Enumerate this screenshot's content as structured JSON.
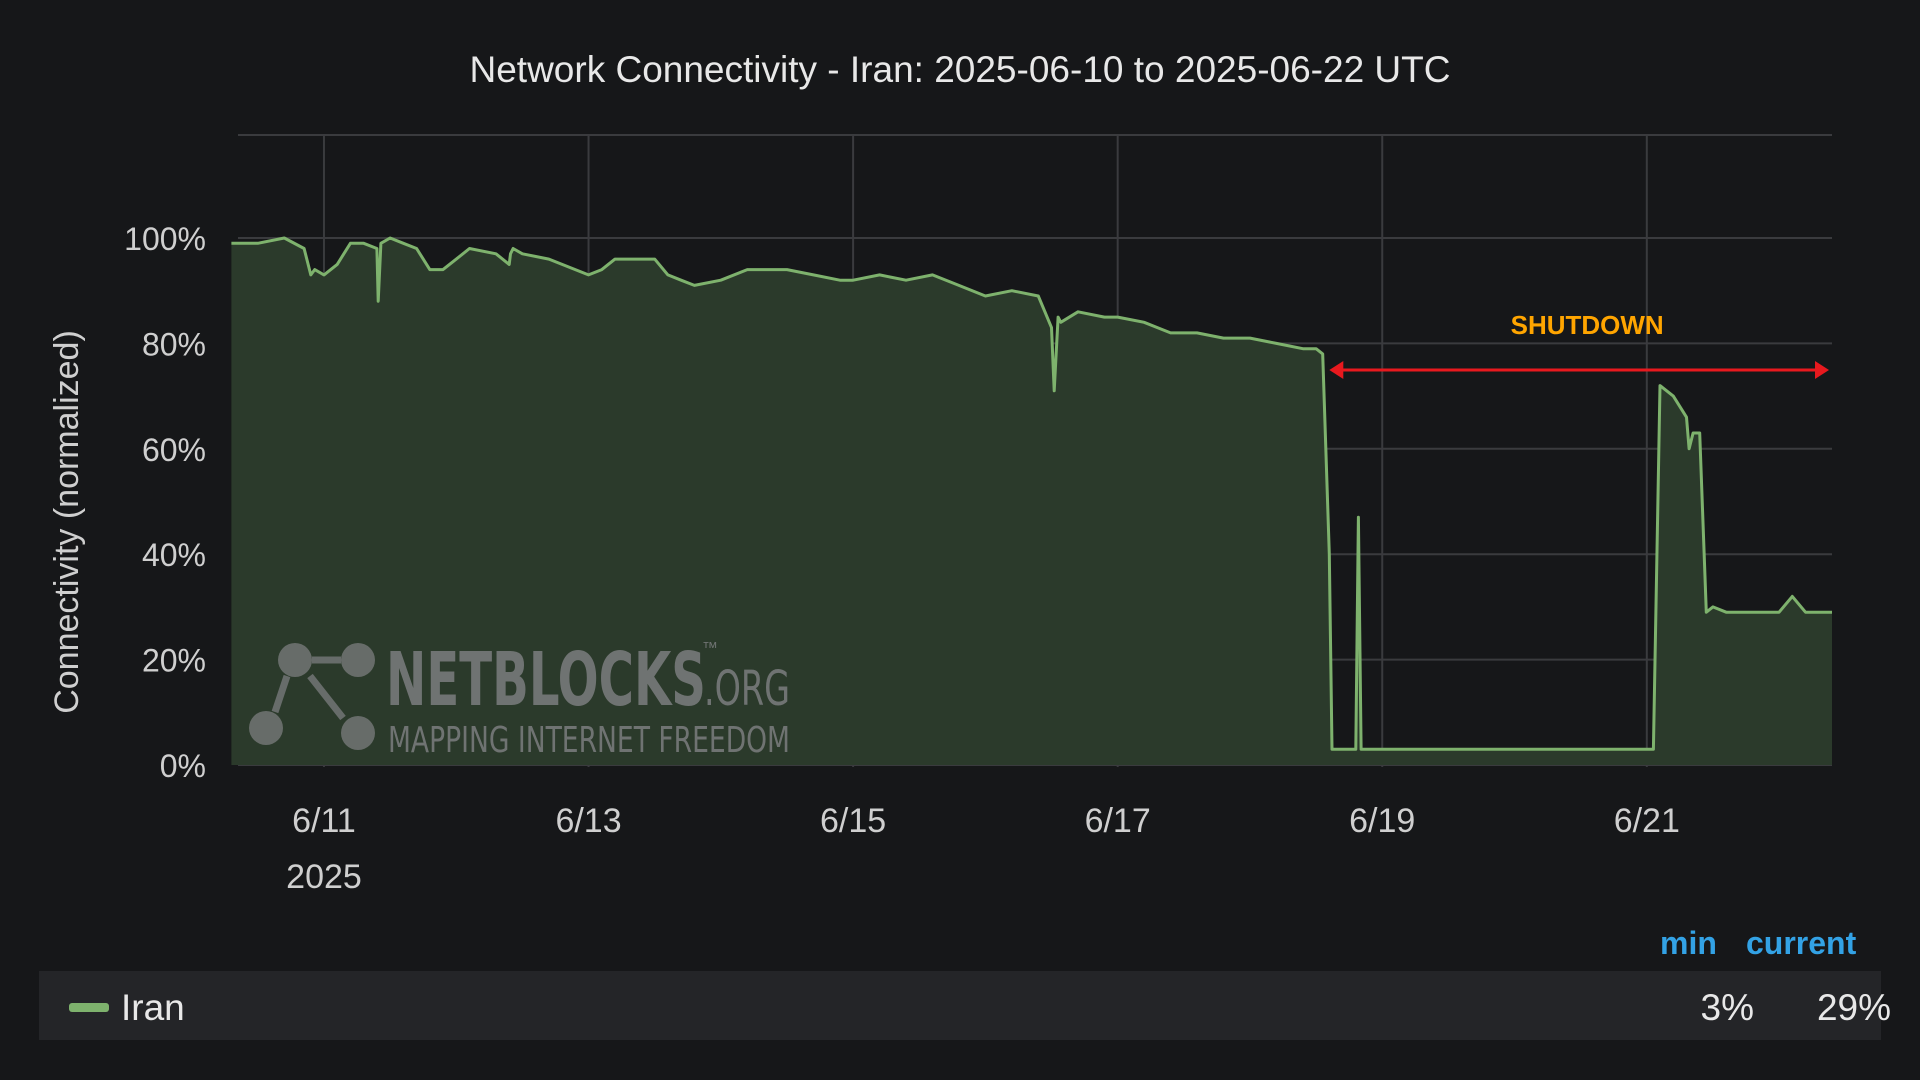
{
  "chart_data": {
    "type": "area",
    "title": "Network Connectivity - Iran: 2025-06-10 to 2025-06-22 UTC",
    "ylabel": "Connectivity (normalized)",
    "xlabel": "",
    "x_ticks": [
      "6/11",
      "6/13",
      "6/15",
      "6/17",
      "6/19",
      "6/21"
    ],
    "x_year_label": "2025",
    "y_ticks": [
      "0%",
      "20%",
      "40%",
      "60%",
      "80%",
      "100%"
    ],
    "ylim": [
      0,
      100
    ],
    "grid": true,
    "colors": {
      "line": "#7eb26d",
      "fill": "#2b3a2b",
      "annotation_text": "#ffa500",
      "annotation_arrow": "#e8191e",
      "stat_header": "#33a2e5"
    },
    "series": [
      {
        "name": "Iran",
        "x_days": [
          10.3,
          10.5,
          10.7,
          10.85,
          10.9,
          10.93,
          11.0,
          11.1,
          11.2,
          11.3,
          11.4,
          11.41,
          11.43,
          11.5,
          11.6,
          11.7,
          11.8,
          11.9,
          12.0,
          12.1,
          12.3,
          12.4,
          12.41,
          12.43,
          12.5,
          12.7,
          12.9,
          13.0,
          13.1,
          13.2,
          13.3,
          13.4,
          13.5,
          13.6,
          13.7,
          13.8,
          14.0,
          14.2,
          14.4,
          14.5,
          14.7,
          14.9,
          15.0,
          15.2,
          15.4,
          15.6,
          15.8,
          16.0,
          16.2,
          16.4,
          16.5,
          16.52,
          16.55,
          16.57,
          16.7,
          16.9,
          17.0,
          17.2,
          17.3,
          17.4,
          17.6,
          17.8,
          17.9,
          18.0,
          18.2,
          18.4,
          18.5,
          18.55,
          18.6,
          18.62,
          18.8,
          18.82,
          18.84,
          18.86,
          18.9,
          19.0,
          19.5,
          20.0,
          20.5,
          21.0,
          21.05,
          21.1,
          21.2,
          21.3,
          21.32,
          21.35,
          21.4,
          21.45,
          21.5,
          21.6,
          21.8,
          22.0,
          22.1,
          22.2,
          22.4
        ],
        "values": [
          99,
          99,
          100,
          98,
          93,
          94,
          93,
          95,
          99,
          99,
          98,
          88,
          99,
          100,
          99,
          98,
          94,
          94,
          96,
          98,
          97,
          95,
          97,
          98,
          97,
          96,
          94,
          93,
          94,
          96,
          96,
          96,
          96,
          93,
          92,
          91,
          92,
          94,
          94,
          94,
          93,
          92,
          92,
          93,
          92,
          93,
          91,
          89,
          90,
          89,
          83,
          71,
          85,
          84,
          86,
          85,
          85,
          84,
          83,
          82,
          82,
          81,
          81,
          81,
          80,
          79,
          79,
          78,
          40,
          3,
          3,
          47,
          3,
          3,
          3,
          3,
          3,
          3,
          3,
          3,
          3,
          72,
          70,
          66,
          60,
          63,
          63,
          29,
          30,
          29,
          29,
          29,
          32,
          29,
          29
        ]
      }
    ],
    "annotation": {
      "label": "SHUTDOWN",
      "start_day": 18.6,
      "end_day": 22.4,
      "level": 75
    },
    "legend_stats": {
      "headers": [
        "min",
        "current"
      ],
      "values": [
        "3%",
        "29%"
      ]
    }
  },
  "watermark": {
    "brand": "NETBLOCKS",
    "suffix": ".ORG",
    "tm": "™",
    "tagline": "MAPPING INTERNET FREEDOM"
  }
}
